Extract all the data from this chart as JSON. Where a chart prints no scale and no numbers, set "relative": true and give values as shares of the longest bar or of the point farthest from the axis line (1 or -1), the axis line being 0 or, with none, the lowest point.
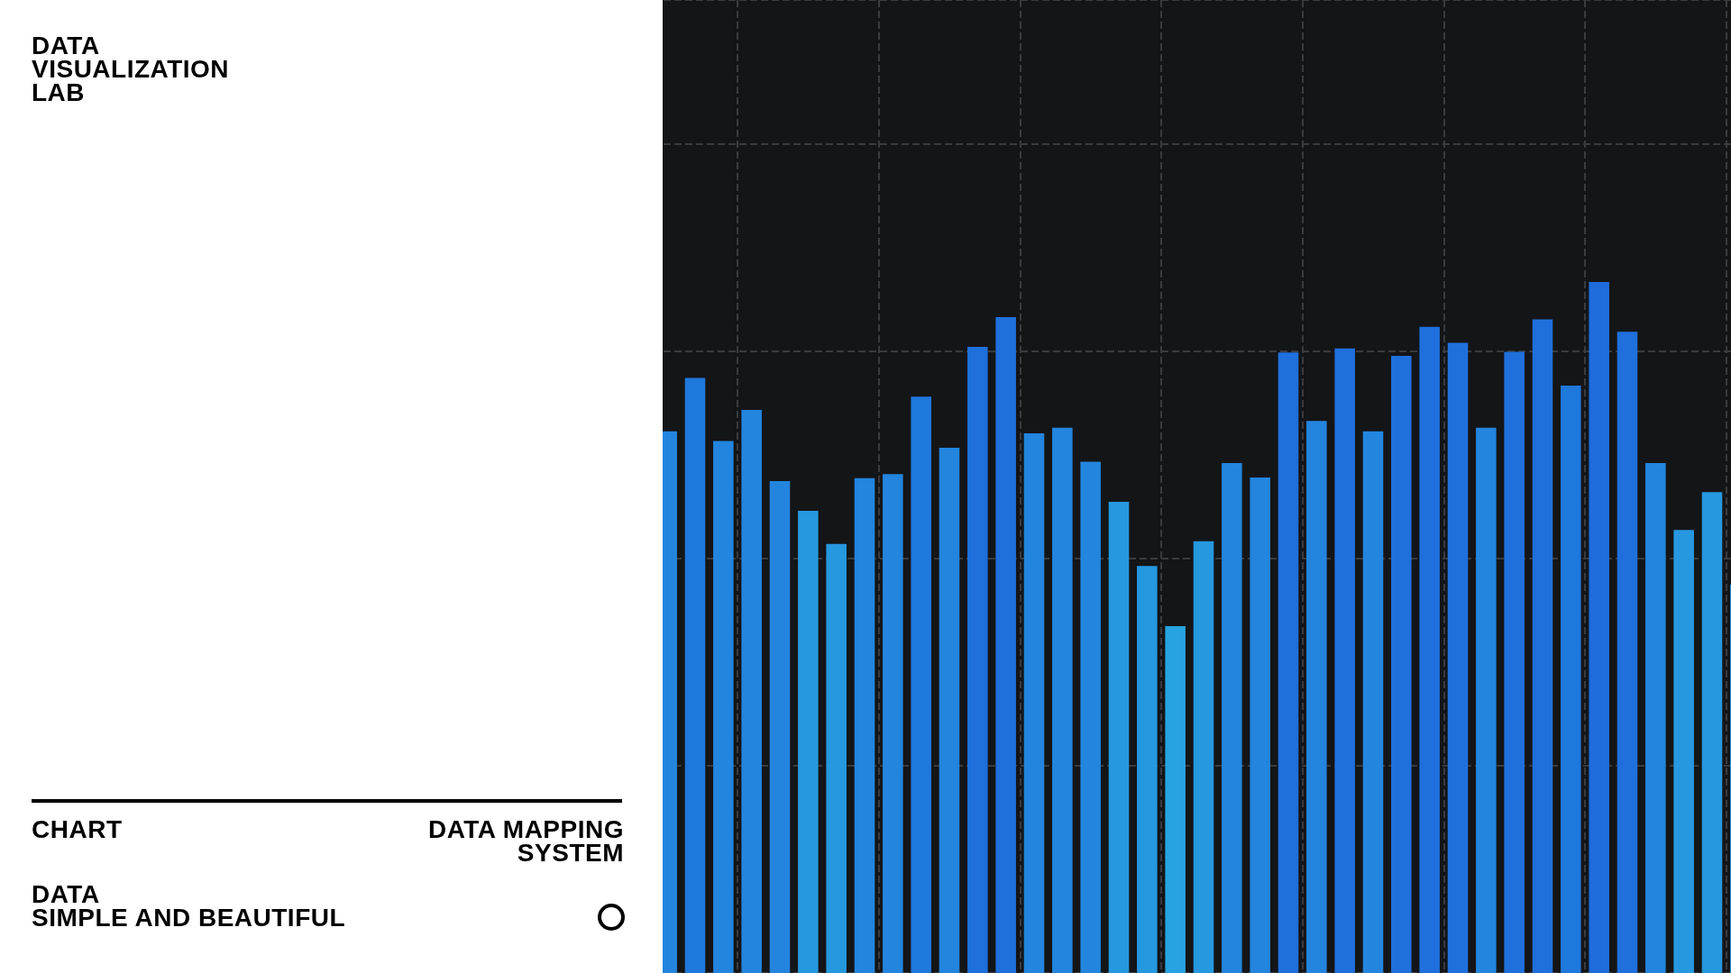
{
  "chart_data": {
    "type": "bar",
    "title": "DATA VISUALIZATION LAB",
    "annotations": [
      "CHART",
      "DATA MAPPING SYSTEM",
      "DATA",
      "SIMPLE AND BEAUTIFUL"
    ],
    "relative": true,
    "grid": true,
    "categories": [
      null,
      null,
      null,
      null,
      null,
      null,
      null,
      null,
      null,
      null,
      null,
      null,
      null,
      null,
      null,
      null,
      null,
      null,
      null,
      null,
      null,
      null,
      null,
      null,
      null,
      null,
      null,
      null,
      null,
      null,
      null,
      null,
      null,
      null,
      null,
      null,
      null,
      null,
      null
    ],
    "values": [
      0.784,
      0.861,
      0.77,
      0.815,
      0.712,
      0.669,
      0.621,
      0.716,
      0.722,
      0.834,
      0.76,
      0.906,
      0.949,
      0.781,
      0.789,
      0.74,
      0.682,
      0.589,
      0.502,
      0.625,
      0.738,
      0.717,
      0.898,
      0.799,
      0.904,
      0.784,
      0.893,
      0.935,
      0.912,
      0.789,
      0.899,
      0.946,
      0.85,
      1,
      0.928,
      0.738,
      0.641,
      0.696,
      0.562
    ],
    "colors": [
      "#2385de",
      "#1f78dc",
      "#2385de",
      "#2385de",
      "#2385de",
      "#2698e0",
      "#2698e0",
      "#2385de",
      "#2385de",
      "#1f78dc",
      "#2385de",
      "#1f70dc",
      "#1f70dc",
      "#2385de",
      "#2385de",
      "#2385de",
      "#2698e0",
      "#2698e0",
      "#26a3e0",
      "#2698e0",
      "#2385de",
      "#2385de",
      "#1f70dc",
      "#2385de",
      "#1f70dc",
      "#2385de",
      "#1f70dc",
      "#1f70dc",
      "#1f70dc",
      "#2385de",
      "#1f70dc",
      "#1f70dc",
      "#1f78dc",
      "#1f6cdc",
      "#1f70dc",
      "#2385de",
      "#2698e0",
      "#2698e0",
      "#2698e0"
    ]
  }
}
